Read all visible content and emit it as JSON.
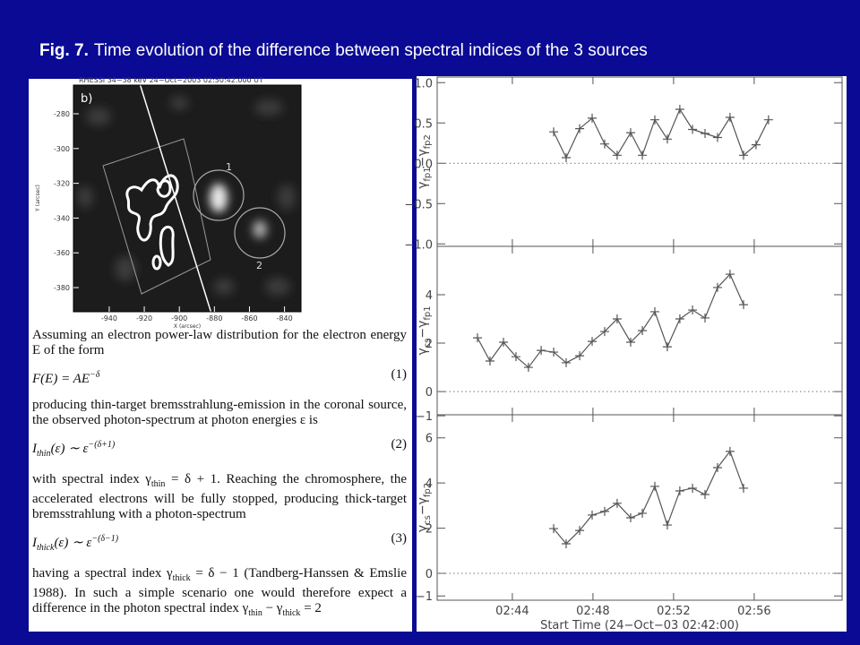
{
  "title": {
    "lead": "Fig. 7.",
    "text": "Time evolution of the difference between spectral indices of the 3 sources"
  },
  "image": {
    "caption": "RHESSI 34−38 keV 24−Oct−2003 02:50:42.000 UT",
    "panel": "b)",
    "xlim": [
      -960.4,
      -830.6
    ],
    "ylim": [
      -393.9,
      -263.5
    ],
    "xticks": [
      -940,
      -920,
      -900,
      -880,
      -860,
      -840
    ],
    "yticks": [
      -280,
      -300,
      -320,
      -340,
      -360,
      -380
    ],
    "xlabel": "X (arcsec)",
    "ylabel": "Y (arcsec)",
    "sources": [
      "1",
      "2"
    ]
  },
  "text": {
    "p1": "Assuming an electron power-law distribution for the electron energy E of the form",
    "eq1": {
      "parts": [
        "F(E) = AE",
        "−δ"
      ],
      "num": "(1)"
    },
    "p2": "producing thin-target bremsstrahlung-emission in the coronal source, the observed photon-spectrum at photon energies ε is",
    "eq2": {
      "parts": [
        "I",
        "thin",
        "(ε) ∼ ε",
        "−(δ+1)"
      ],
      "num": "(2)"
    },
    "p3": [
      "with spectral index γ",
      "thin",
      " = δ + 1. Reaching the chromosphere, the accelerated electrons will be fully stopped, producing thick-target bremsstrahlung with a photon-spectrum"
    ],
    "eq3": {
      "parts": [
        "I",
        "thick",
        "(ε) ∼ ε",
        "−(δ−1)"
      ],
      "num": "(3)"
    },
    "p4": [
      "having a spectral index γ",
      "thick",
      " = δ − 1 (Tandberg-Hanssen & Emslie 1988). In such a simple scenario one would therefore expect a difference in the photon spectral index γ",
      "thin",
      " − γ",
      "thick",
      " = 2"
    ]
  },
  "plot": {
    "type": "line",
    "xlim": [
      40.27,
      60.36
    ],
    "xticks": [
      {
        "value": 44,
        "label": "02:44"
      },
      {
        "value": 48,
        "label": "02:48"
      },
      {
        "value": 52,
        "label": "02:52"
      },
      {
        "value": 56,
        "label": "02:56"
      }
    ],
    "xlabel": "Start Time (24−Oct−03 02:42:00)",
    "color": "#555555",
    "panels": [
      {
        "ylabel": [
          "γ",
          "fp1",
          "−γ",
          "fp2"
        ],
        "ylim": [
          -1.03,
          1.07
        ],
        "refline": 0,
        "yticks": [
          {
            "value": -1,
            "label": "−1.0"
          },
          {
            "value": -0.5,
            "label": "−0.5"
          },
          {
            "value": 0,
            "label": "0.0"
          },
          {
            "value": 0.5,
            "label": "0.5"
          },
          {
            "value": 1,
            "label": "1.0"
          }
        ],
        "x": [
          46.05,
          46.67,
          47.34,
          47.96,
          48.58,
          49.2,
          49.87,
          50.45,
          51.07,
          51.69,
          52.31,
          52.94,
          53.56,
          54.18,
          54.8,
          55.47,
          56.09,
          56.71
        ],
        "values": [
          0.39,
          0.07,
          0.43,
          0.56,
          0.24,
          0.1,
          0.38,
          0.1,
          0.54,
          0.3,
          0.67,
          0.42,
          0.37,
          0.32,
          0.57,
          0.1,
          0.23,
          0.54
        ]
      },
      {
        "ylabel": [
          "γ",
          "cs",
          "−γ",
          "fp1"
        ],
        "ylim": [
          -0.96,
          6.0
        ],
        "refline": 0,
        "yticks": [
          {
            "value": -1,
            "label": "−1"
          },
          0,
          2,
          4
        ],
        "x": [
          42.27,
          42.89,
          43.56,
          44.18,
          44.8,
          45.43,
          46.05,
          46.67,
          47.34,
          47.96,
          48.58,
          49.2,
          49.87,
          50.45,
          51.07,
          51.69,
          52.31,
          52.94,
          53.56,
          54.18,
          54.8,
          55.47
        ],
        "values": [
          2.22,
          1.26,
          2.04,
          1.44,
          1.0,
          1.7,
          1.63,
          1.19,
          1.48,
          2.07,
          2.48,
          3.0,
          2.04,
          2.52,
          3.3,
          1.85,
          3.0,
          3.37,
          3.04,
          4.3,
          4.85,
          3.59
        ]
      },
      {
        "ylabel": [
          "γ",
          "cs",
          "−γ",
          "fp2"
        ],
        "ylim": [
          -1.19,
          7.02
        ],
        "refline": 0,
        "yticks": [
          {
            "value": -1,
            "label": "−1"
          },
          0,
          2,
          4,
          6
        ],
        "x": [
          46.05,
          46.67,
          47.34,
          47.96,
          48.58,
          49.2,
          49.87,
          50.45,
          51.07,
          51.69,
          52.31,
          52.94,
          53.56,
          54.18,
          54.8,
          55.47
        ],
        "values": [
          1.98,
          1.31,
          1.9,
          2.58,
          2.74,
          3.1,
          2.46,
          2.66,
          3.85,
          2.14,
          3.65,
          3.77,
          3.49,
          4.68,
          5.4,
          3.77
        ]
      }
    ]
  }
}
